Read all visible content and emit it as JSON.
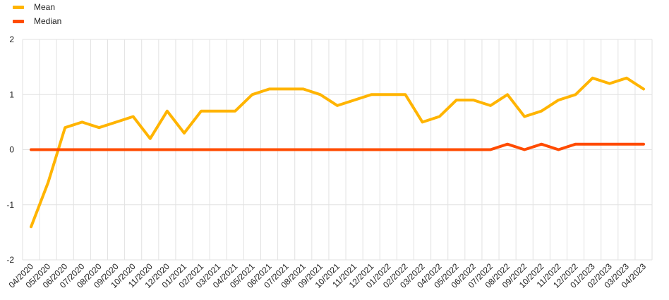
{
  "chart_data": {
    "type": "line",
    "title": "",
    "xlabel": "",
    "ylabel": "",
    "ylim": [
      -2,
      2
    ],
    "yticks": [
      -2,
      -1,
      0,
      1,
      2
    ],
    "grid": true,
    "legend_position": "top-left",
    "categories": [
      "04/2020",
      "05/2020",
      "06/2020",
      "07/2020",
      "08/2020",
      "09/2020",
      "10/2020",
      "11/2020",
      "12/2020",
      "01/2021",
      "02/2021",
      "03/2021",
      "04/2021",
      "05/2021",
      "06/2021",
      "07/2021",
      "08/2021",
      "09/2021",
      "10/2021",
      "11/2021",
      "12/2021",
      "01/2022",
      "02/2022",
      "03/2022",
      "04/2022",
      "05/2022",
      "06/2022",
      "07/2022",
      "08/2022",
      "09/2022",
      "10/2022",
      "11/2022",
      "12/2022",
      "01/2023",
      "02/2023",
      "03/2023",
      "04/2023"
    ],
    "series": [
      {
        "name": "Mean",
        "color": "#FFB400",
        "values": [
          -1.4,
          -0.6,
          0.4,
          0.5,
          0.4,
          0.5,
          0.6,
          0.2,
          0.7,
          0.3,
          0.7,
          0.7,
          0.7,
          1.0,
          1.1,
          1.1,
          1.1,
          1.0,
          0.8,
          0.9,
          1.0,
          1.0,
          1.0,
          0.5,
          0.6,
          0.9,
          0.9,
          0.8,
          1.0,
          0.6,
          0.7,
          0.9,
          1.0,
          1.3,
          1.2,
          1.3,
          1.1
        ]
      },
      {
        "name": "Median",
        "color": "#FF4B00",
        "values": [
          0,
          0,
          0,
          0,
          0,
          0,
          0,
          0,
          0,
          0,
          0,
          0,
          0,
          0,
          0,
          0,
          0,
          0,
          0,
          0,
          0,
          0,
          0,
          0,
          0,
          0,
          0,
          0,
          0.1,
          0,
          0.1,
          0,
          0.1,
          0.1,
          0.1,
          0.1,
          0.1
        ]
      }
    ]
  }
}
